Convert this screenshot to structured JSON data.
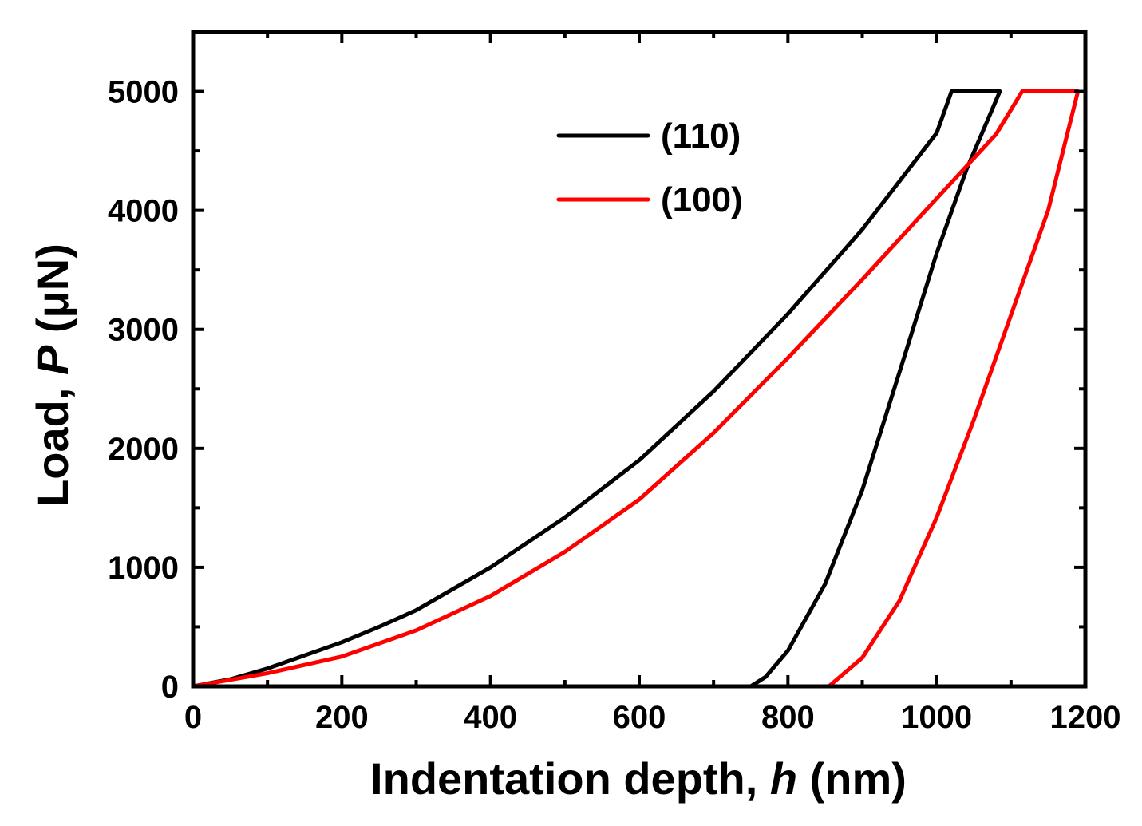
{
  "chart_data": {
    "type": "line",
    "title": "",
    "xlabel": {
      "prefix": "Indentation depth, ",
      "italic": "h",
      "suffix": " (nm)"
    },
    "ylabel": {
      "prefix": "Load, ",
      "italic": "P",
      "suffix": " (μN)"
    },
    "xlim": [
      0,
      1200
    ],
    "ylim": [
      0,
      5500
    ],
    "x_ticks": [
      0,
      200,
      400,
      600,
      800,
      1000,
      1200
    ],
    "x_tick_labels": [
      "0",
      "200",
      "400",
      "600",
      "800",
      "1000",
      "1200"
    ],
    "x_minor_ticks": [
      100,
      300,
      500,
      700,
      900,
      1100
    ],
    "y_ticks": [
      0,
      1000,
      2000,
      3000,
      4000,
      5000
    ],
    "y_tick_labels": [
      "0",
      "1000",
      "2000",
      "3000",
      "4000",
      "5000"
    ],
    "y_minor_ticks": [
      500,
      1500,
      2500,
      3500,
      4500
    ],
    "grid": false,
    "legend_position": "top-center",
    "series": [
      {
        "name": "(110)",
        "color": "#000000",
        "points": [
          [
            0,
            0
          ],
          [
            50,
            60
          ],
          [
            100,
            150
          ],
          [
            150,
            260
          ],
          [
            200,
            370
          ],
          [
            250,
            500
          ],
          [
            300,
            640
          ],
          [
            400,
            1000
          ],
          [
            500,
            1420
          ],
          [
            600,
            1900
          ],
          [
            700,
            2480
          ],
          [
            800,
            3130
          ],
          [
            900,
            3840
          ],
          [
            1000,
            4650
          ],
          [
            1020,
            5000
          ],
          [
            1085,
            5000
          ],
          [
            1040,
            4340
          ],
          [
            1000,
            3640
          ],
          [
            950,
            2640
          ],
          [
            900,
            1650
          ],
          [
            850,
            860
          ],
          [
            800,
            300
          ],
          [
            770,
            80
          ],
          [
            750,
            0
          ]
        ]
      },
      {
        "name": "(100)",
        "color": "#ff0000",
        "points": [
          [
            0,
            0
          ],
          [
            100,
            110
          ],
          [
            200,
            250
          ],
          [
            300,
            470
          ],
          [
            400,
            760
          ],
          [
            500,
            1130
          ],
          [
            600,
            1570
          ],
          [
            700,
            2130
          ],
          [
            800,
            2760
          ],
          [
            900,
            3420
          ],
          [
            1000,
            4100
          ],
          [
            1080,
            4640
          ],
          [
            1115,
            5000
          ],
          [
            1190,
            5000
          ],
          [
            1150,
            4000
          ],
          [
            1100,
            3120
          ],
          [
            1050,
            2240
          ],
          [
            1000,
            1420
          ],
          [
            950,
            720
          ],
          [
            900,
            240
          ],
          [
            855,
            0
          ]
        ]
      }
    ]
  }
}
